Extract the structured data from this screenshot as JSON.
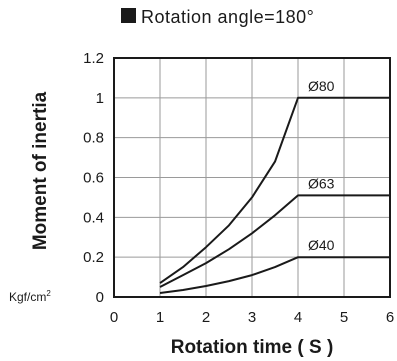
{
  "chart_data": {
    "type": "line",
    "title": "Rotation angle=180°",
    "xlabel": "Rotation time ( S )",
    "ylabel": "Moment of inertia",
    "yunit": "Kgf/cm",
    "yunit_sup": "2",
    "xlim": [
      0,
      6
    ],
    "ylim": [
      0,
      1.2
    ],
    "xticks": [
      "0",
      "1",
      "2",
      "3",
      "4",
      "5",
      "6"
    ],
    "yticks": [
      "0",
      "0.2",
      "0.4",
      "0.6",
      "0.8",
      "1",
      "1.2"
    ],
    "grid": true,
    "colors": {
      "line": "#1a1a1a",
      "grid": "#9a9a9a",
      "background": "#ffffff"
    },
    "series": [
      {
        "name": "Ø80",
        "x": [
          1,
          1.5,
          2,
          2.5,
          3,
          3.5,
          4,
          6
        ],
        "y": [
          0.07,
          0.15,
          0.25,
          0.36,
          0.5,
          0.68,
          1.0,
          1.0
        ]
      },
      {
        "name": "Ø63",
        "x": [
          1,
          1.5,
          2,
          2.5,
          3,
          3.5,
          4,
          6
        ],
        "y": [
          0.05,
          0.11,
          0.17,
          0.24,
          0.32,
          0.41,
          0.51,
          0.51
        ]
      },
      {
        "name": "Ø40",
        "x": [
          1,
          1.5,
          2,
          2.5,
          3,
          3.5,
          4,
          6
        ],
        "y": [
          0.02,
          0.035,
          0.055,
          0.08,
          0.11,
          0.15,
          0.2,
          0.2
        ]
      }
    ]
  }
}
